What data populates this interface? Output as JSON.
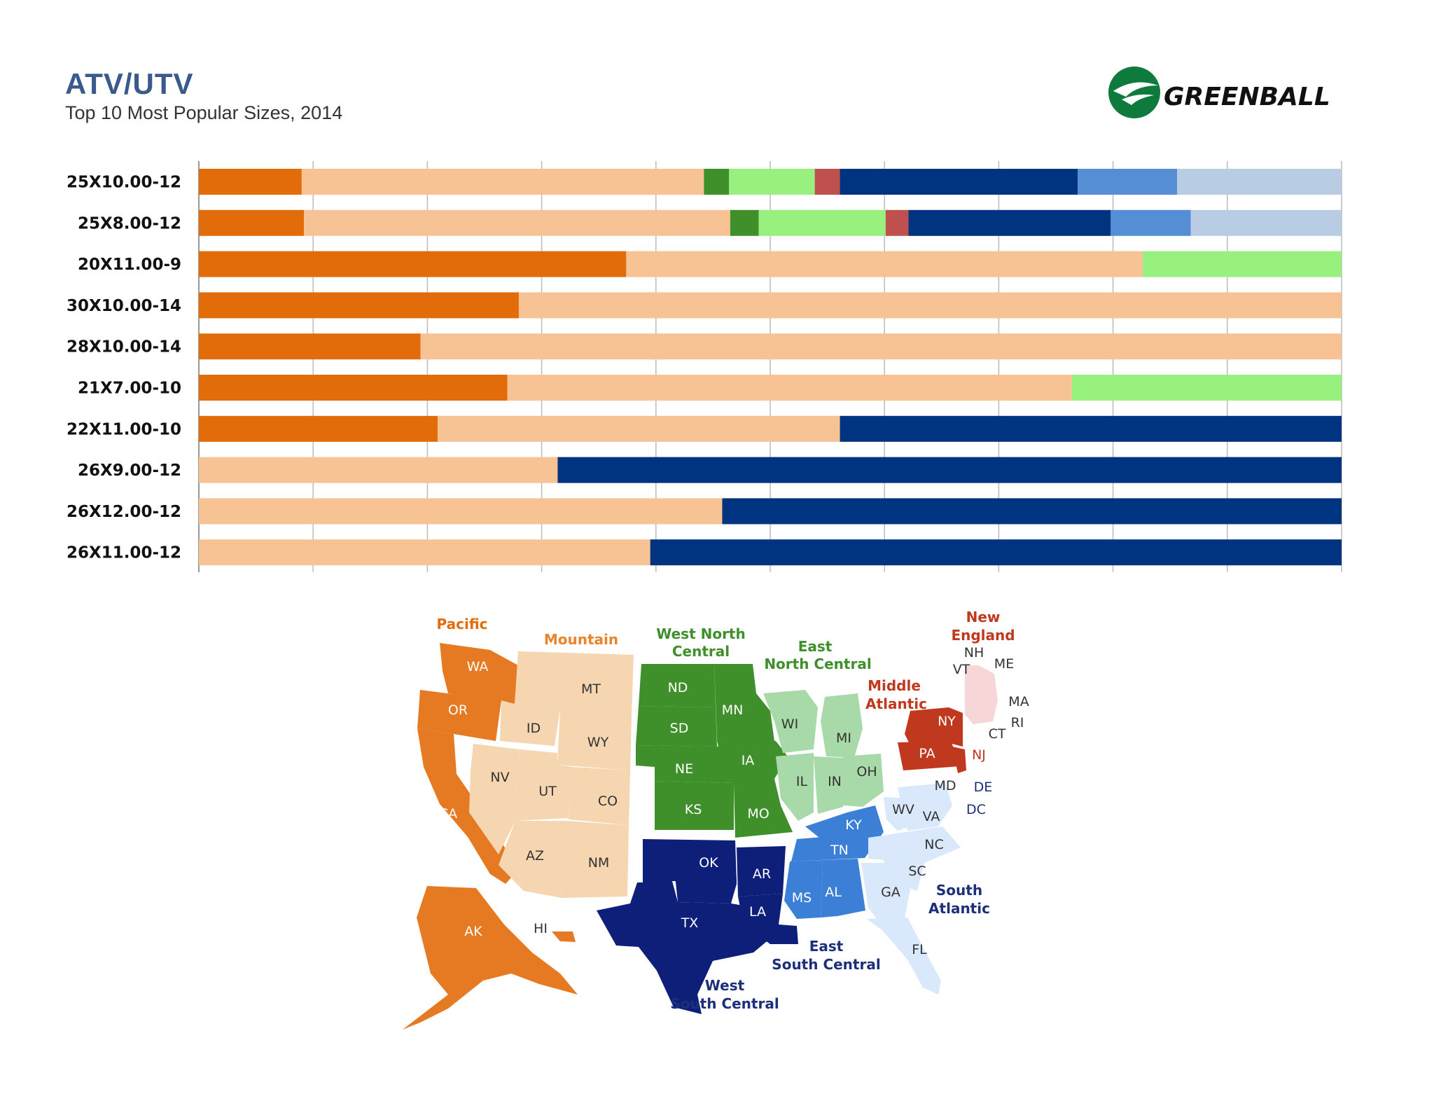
{
  "title": "ATV/UTV",
  "subtitle": "Top 10 Most Popular Sizes, 2014",
  "brand": "GREENBALL",
  "colors": {
    "Pacific": "#e36c0a",
    "Mountain": "#f7c395",
    "West North Central": "#3f8f2a",
    "East North Central": "#98f07f",
    "Middle Atlantic": "#c0504d",
    "West South Central": "#003380",
    "East South Central": "#558ed5",
    "South Atlantic": "#b8cce4"
  },
  "chart_data": {
    "type": "bar",
    "orientation": "horizontal",
    "stacked": "100%",
    "title": "ATV/UTV",
    "subtitle": "Top 10 Most Popular Sizes, 2014",
    "xlim": [
      0,
      100
    ],
    "grid": true,
    "categories": [
      "25X10.00-12",
      "25X8.00-12",
      "20X11.00-9",
      "30X10.00-14",
      "28X10.00-14",
      "21X7.00-10",
      "22X11.00-10",
      "26X9.00-12",
      "26X12.00-12",
      "26X11.00-12"
    ],
    "series": [
      {
        "name": "Pacific",
        "values": [
          9,
          9.2,
          37.4,
          28,
          19.4,
          27,
          20.9,
          0,
          0,
          0
        ]
      },
      {
        "name": "Mountain",
        "values": [
          35.2,
          37.3,
          45.2,
          72,
          80.6,
          49.4,
          35.2,
          31.4,
          45.8,
          39.5
        ]
      },
      {
        "name": "West North Central",
        "values": [
          2.2,
          2.5,
          0,
          0,
          0,
          0,
          0,
          0,
          0,
          0
        ]
      },
      {
        "name": "East North Central",
        "values": [
          7.5,
          11.1,
          17.4,
          0,
          0,
          23.6,
          0,
          0,
          0,
          0
        ]
      },
      {
        "name": "Middle Atlantic",
        "values": [
          2.2,
          2,
          0,
          0,
          0,
          0,
          0,
          0,
          0,
          0
        ]
      },
      {
        "name": "West South Central",
        "values": [
          20.8,
          17.7,
          0,
          0,
          0,
          0,
          43.9,
          68.6,
          54.2,
          60.5
        ]
      },
      {
        "name": "East South Central",
        "values": [
          8.7,
          7,
          0,
          0,
          0,
          0,
          0,
          0,
          0,
          0
        ]
      },
      {
        "name": "South Atlantic",
        "values": [
          14.4,
          13.2,
          0,
          0,
          0,
          0,
          0,
          0,
          0,
          0
        ]
      }
    ]
  },
  "map": {
    "regions": {
      "pacific": "Pacific",
      "mountain": "Mountain",
      "wnc_1": "West North",
      "wnc_2": "Central",
      "enc_1": "East",
      "enc_2": "North Central",
      "ma_1": "Middle",
      "ma_2": "Atlantic",
      "ne_1": "New",
      "ne_2": "England",
      "sa_1": "South",
      "sa_2": "Atlantic",
      "esc_1": "East",
      "esc_2": "South Central",
      "wsc_1": "West",
      "wsc_2": "South Central"
    },
    "states": {
      "WA": "WA",
      "OR": "OR",
      "CA": "CA",
      "AK": "AK",
      "HI": "HI",
      "MT": "MT",
      "ID": "ID",
      "WY": "WY",
      "NV": "NV",
      "UT": "UT",
      "CO": "CO",
      "AZ": "AZ",
      "NM": "NM",
      "ND": "ND",
      "SD": "SD",
      "NE": "NE",
      "KS": "KS",
      "MN": "MN",
      "IA": "IA",
      "MO": "MO",
      "WI": "WI",
      "MI": "MI",
      "IL": "IL",
      "IN": "IN",
      "OH": "OH",
      "NY": "NY",
      "PA": "PA",
      "NJ": "NJ",
      "NH": "NH",
      "VT": "VT",
      "ME": "ME",
      "MA": "MA",
      "RI": "RI",
      "CT": "CT",
      "OK": "OK",
      "TX": "TX",
      "AR": "AR",
      "LA": "LA",
      "KY": "KY",
      "TN": "TN",
      "MS": "MS",
      "AL": "AL",
      "WV": "WV",
      "VA": "VA",
      "MD": "MD",
      "DE": "DE",
      "DC": "DC",
      "NC": "NC",
      "SC": "SC",
      "GA": "GA",
      "FL": "FL"
    }
  }
}
